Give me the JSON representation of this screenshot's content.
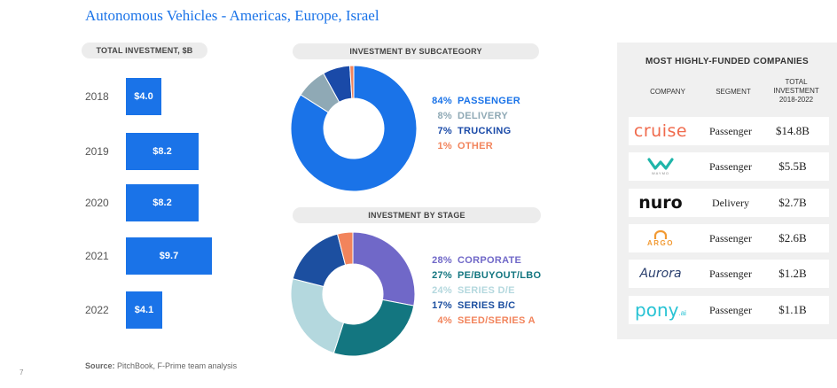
{
  "title": "Autonomous Vehicles - Americas, Europe, Israel",
  "source_label": "Source:",
  "source_text": "PitchBook, F-Prime team analysis",
  "page_number": "7",
  "colors": {
    "accent": "#1a73e8",
    "passenger": "#1a73e8",
    "delivery": "#8fa9b5",
    "trucking": "#1a4aa8",
    "other": "#f2845c",
    "corporate": "#7068c8",
    "pe_buyout_lbo": "#137680",
    "series_d_e": "#b4d8de",
    "series_b_c": "#1c4fa0",
    "seed_series_a": "#f2845c"
  },
  "chart_data": [
    {
      "type": "bar",
      "title": "TOTAL INVESTMENT, $B",
      "orientation": "horizontal",
      "categories": [
        "2018",
        "2019",
        "2020",
        "2021",
        "2022"
      ],
      "values": [
        4.0,
        8.2,
        8.2,
        9.7,
        4.1
      ],
      "value_labels": [
        "$4.0",
        "$8.2",
        "$8.2",
        "$9.7",
        "$4.1"
      ],
      "xlim": [
        0,
        10
      ],
      "grid": false
    },
    {
      "type": "pie",
      "variant": "donut",
      "title": "INVESTMENT BY SUBCATEGORY",
      "legend_position": "right",
      "slices": [
        {
          "label": "PASSENGER",
          "pct_label": "84%",
          "value": 84,
          "color": "#1a73e8"
        },
        {
          "label": "DELIVERY",
          "pct_label": "8%",
          "value": 8,
          "color": "#8fa9b5"
        },
        {
          "label": "TRUCKING",
          "pct_label": "7%",
          "value": 7,
          "color": "#1a4aa8"
        },
        {
          "label": "OTHER",
          "pct_label": "1%",
          "value": 1,
          "color": "#f2845c"
        }
      ]
    },
    {
      "type": "pie",
      "variant": "donut",
      "title": "INVESTMENT BY STAGE",
      "legend_position": "right",
      "slices": [
        {
          "label": "CORPORATE",
          "pct_label": "28%",
          "value": 28,
          "color": "#7068c8"
        },
        {
          "label": "PE/BUYOUT/LBO",
          "pct_label": "27%",
          "value": 27,
          "color": "#137680"
        },
        {
          "label": "SERIES D/E",
          "pct_label": "24%",
          "value": 24,
          "color": "#b4d8de"
        },
        {
          "label": "SERIES B/C",
          "pct_label": "17%",
          "value": 17,
          "color": "#1c4fa0"
        },
        {
          "label": "SEED/SERIES A",
          "pct_label": "4%",
          "value": 4,
          "color": "#f2845c"
        }
      ]
    },
    {
      "type": "table",
      "title": "MOST HIGHLY-FUNDED COMPANIES",
      "columns": [
        "COMPANY",
        "SEGMENT",
        "TOTAL INVESTMENT 2018-2022"
      ],
      "column_lines": {
        "company": "COMPANY",
        "segment": "SEGMENT",
        "total_1": "TOTAL",
        "total_2": "INVESTMENT",
        "total_3": "2018-2022"
      },
      "rows": [
        {
          "company": "cruise",
          "segment": "Passenger",
          "total": "$14.8B",
          "logo_color": "#f06a4c"
        },
        {
          "company": "waymo",
          "logo_sub": "WAYMO",
          "segment": "Passenger",
          "total": "$5.5B",
          "logo_color": "#1fb5a9"
        },
        {
          "company": "nuro",
          "segment": "Delivery",
          "total": "$2.7B",
          "logo_color": "#111111"
        },
        {
          "company": "ARGO",
          "segment": "Passenger",
          "total": "$2.6B",
          "logo_color": "#f29a33"
        },
        {
          "company": "Aurora",
          "segment": "Passenger",
          "total": "$1.2B",
          "logo_color": "#2a3f6e"
        },
        {
          "company": "pony",
          "logo_suffix": ".ai",
          "segment": "Passenger",
          "total": "$1.1B",
          "logo_color": "#28c3d4"
        }
      ]
    }
  ]
}
